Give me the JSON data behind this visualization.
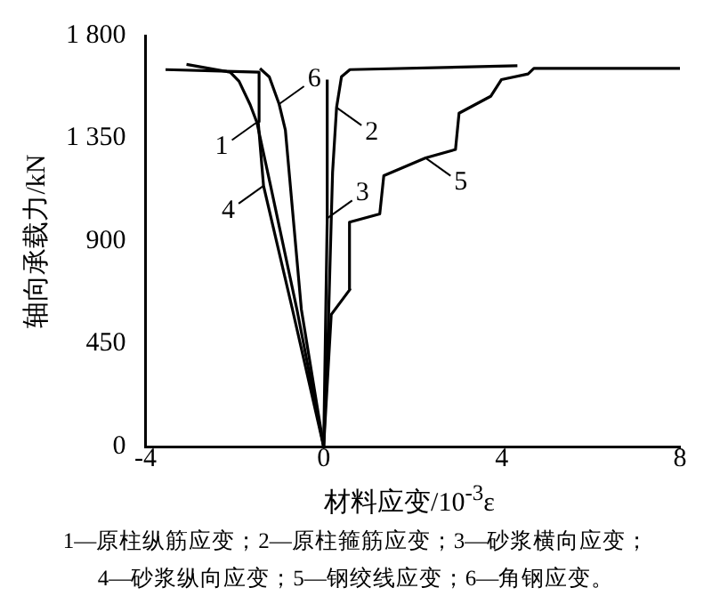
{
  "chart_data": {
    "type": "line",
    "xlabel": "材料应变/10$^{-3}$ε",
    "ylabel": "轴向承载力/kN",
    "xlim": [
      -4,
      8
    ],
    "xticks": [
      -4,
      0,
      4,
      8
    ],
    "ylim": [
      0,
      1800
    ],
    "yticks": [
      0,
      {
        "value": 450,
        "label": "450"
      },
      {
        "value": 900,
        "label": "900"
      },
      {
        "value": 1350,
        "label": "1 350"
      },
      {
        "value": 1800,
        "label": "1 800"
      }
    ],
    "grid": false,
    "legend": "top",
    "series": [
      {
        "name": "1",
        "color": "#000000",
        "x": [
          0,
          -0.6,
          -1.2,
          -1.5,
          -1.65,
          -1.9,
          -2.1,
          -3.08
        ],
        "values": [
          0,
          600,
          1150,
          1420,
          1497,
          1600,
          1640,
          1674
        ]
      },
      {
        "name": "2",
        "color": "#000000",
        "x": [
          0,
          0.1,
          0.2,
          0.29,
          0.4,
          0.59,
          4.35
        ],
        "values": [
          0,
          500,
          1200,
          1485,
          1620,
          1651,
          1668
        ]
      },
      {
        "name": "3",
        "color": "#000000",
        "x": [
          0,
          0.08,
          0.08
        ],
        "values": [
          0,
          1000,
          1607
        ]
      },
      {
        "name": "4",
        "color": "#000000",
        "x": [
          0,
          -0.7,
          -1.35,
          -1.47,
          -1.45,
          -3.55
        ],
        "values": [
          0,
          600,
          1142,
          1423,
          1640,
          1651
        ]
      },
      {
        "name": "5",
        "color": "#000000",
        "x": [
          0,
          0.17,
          0.59,
          0.58,
          1.26,
          1.35,
          2.29,
          2.96,
          3.04,
          3.75,
          3.99,
          4.59,
          4.72,
          8
        ],
        "values": [
          0,
          578,
          688,
          983,
          1019,
          1186,
          1264,
          1301,
          1460,
          1534,
          1607,
          1632,
          1656,
          1656
        ]
      },
      {
        "name": "6",
        "color": "#000000",
        "x": [
          0,
          -0.5,
          -0.86,
          -1.0,
          -1.22,
          -1.43
        ],
        "values": [
          0,
          600,
          1387,
          1500,
          1619,
          1656
        ]
      }
    ],
    "annotations": [
      "1—原柱纵筋应变；2—原柱箍筋应变；3—砂浆横向应变；",
      "4—砂浆纵向应变；5—钢绞线应变；6—角钢应变。"
    ]
  }
}
